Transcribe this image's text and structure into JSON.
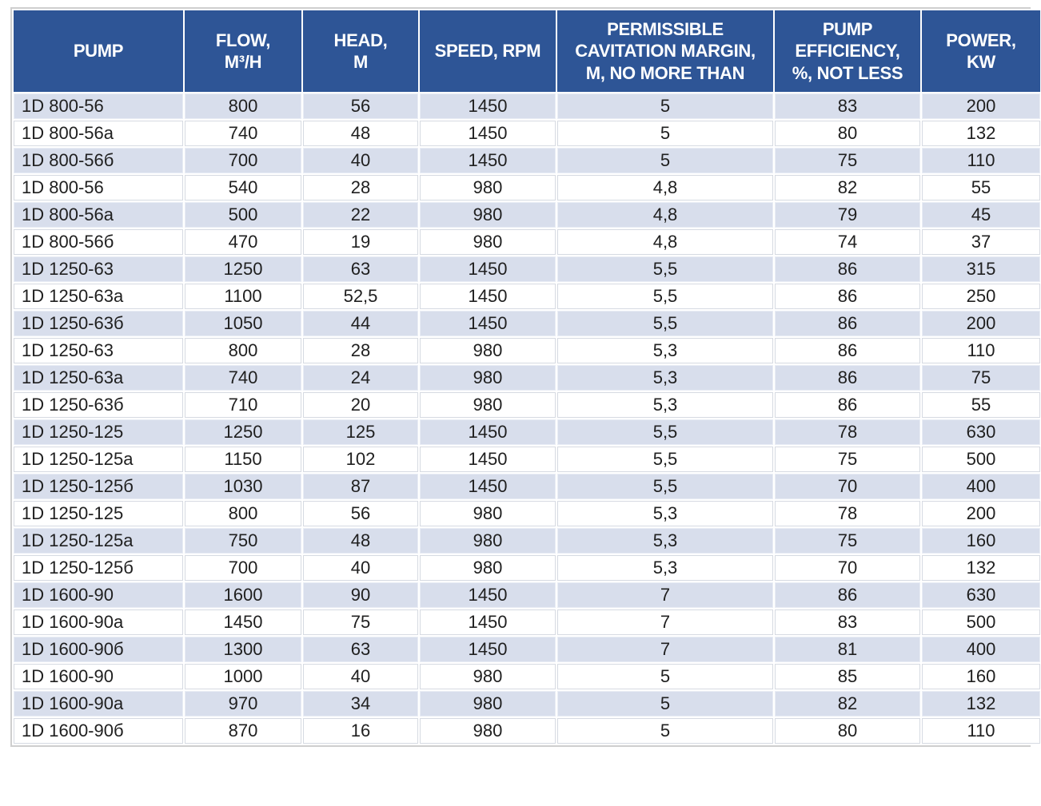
{
  "table": {
    "columns": [
      {
        "id": "pump",
        "label": "PUMP"
      },
      {
        "id": "flow",
        "label": "FLOW,\nM³/H"
      },
      {
        "id": "head",
        "label": "HEAD,\nM"
      },
      {
        "id": "speed",
        "label": "SPEED, RPM"
      },
      {
        "id": "cavitation",
        "label": "PERMISSIBLE\nCAVITATION MARGIN,\nM, NO MORE THAN"
      },
      {
        "id": "efficiency",
        "label": "PUMP\nEFFICIENCY,\n%, NOT LESS"
      },
      {
        "id": "power",
        "label": "POWER,\nKW"
      }
    ],
    "rows": [
      [
        "1D 800-56",
        "800",
        "56",
        "1450",
        "5",
        "83",
        "200"
      ],
      [
        "1D 800-56a",
        "740",
        "48",
        "1450",
        "5",
        "80",
        "132"
      ],
      [
        "1D 800-56б",
        "700",
        "40",
        "1450",
        "5",
        "75",
        "110"
      ],
      [
        "1D 800-56",
        "540",
        "28",
        "980",
        "4,8",
        "82",
        "55"
      ],
      [
        "1D 800-56a",
        "500",
        "22",
        "980",
        "4,8",
        "79",
        "45"
      ],
      [
        "1D 800-56б",
        "470",
        "19",
        "980",
        "4,8",
        "74",
        "37"
      ],
      [
        "1D 1250-63",
        "1250",
        "63",
        "1450",
        "5,5",
        "86",
        "315"
      ],
      [
        "1D 1250-63a",
        "1100",
        "52,5",
        "1450",
        "5,5",
        "86",
        "250"
      ],
      [
        "1D 1250-63б",
        "1050",
        "44",
        "1450",
        "5,5",
        "86",
        "200"
      ],
      [
        "1D 1250-63",
        "800",
        "28",
        "980",
        "5,3",
        "86",
        "110"
      ],
      [
        "1D 1250-63a",
        "740",
        "24",
        "980",
        "5,3",
        "86",
        "75"
      ],
      [
        "1D 1250-63б",
        "710",
        "20",
        "980",
        "5,3",
        "86",
        "55"
      ],
      [
        "1D 1250-125",
        "1250",
        "125",
        "1450",
        "5,5",
        "78",
        "630"
      ],
      [
        "1D 1250-125a",
        "1150",
        "102",
        "1450",
        "5,5",
        "75",
        "500"
      ],
      [
        "1D 1250-125б",
        "1030",
        "87",
        "1450",
        "5,5",
        "70",
        "400"
      ],
      [
        "1D 1250-125",
        "800",
        "56",
        "980",
        "5,3",
        "78",
        "200"
      ],
      [
        "1D 1250-125a",
        "750",
        "48",
        "980",
        "5,3",
        "75",
        "160"
      ],
      [
        "1D 1250-125б",
        "700",
        "40",
        "980",
        "5,3",
        "70",
        "132"
      ],
      [
        "1D 1600-90",
        "1600",
        "90",
        "1450",
        "7",
        "86",
        "630"
      ],
      [
        "1D 1600-90a",
        "1450",
        "75",
        "1450",
        "7",
        "83",
        "500"
      ],
      [
        "1D 1600-90б",
        "1300",
        "63",
        "1450",
        "7",
        "81",
        "400"
      ],
      [
        "1D 1600-90",
        "1000",
        "40",
        "980",
        "5",
        "85",
        "160"
      ],
      [
        "1D 1600-90a",
        "970",
        "34",
        "980",
        "5",
        "82",
        "132"
      ],
      [
        "1D 1600-90б",
        "870",
        "16",
        "980",
        "5",
        "80",
        "110"
      ]
    ]
  },
  "colors": {
    "header_bg": "#2E5596",
    "header_text": "#FFFFFF",
    "stripe_row_bg": "#D8DEEC",
    "white_row_bg": "#FFFFFF",
    "cell_text": "#202020",
    "grid_line": "#D6DAE2",
    "outer_border": "#CFCFCF"
  }
}
